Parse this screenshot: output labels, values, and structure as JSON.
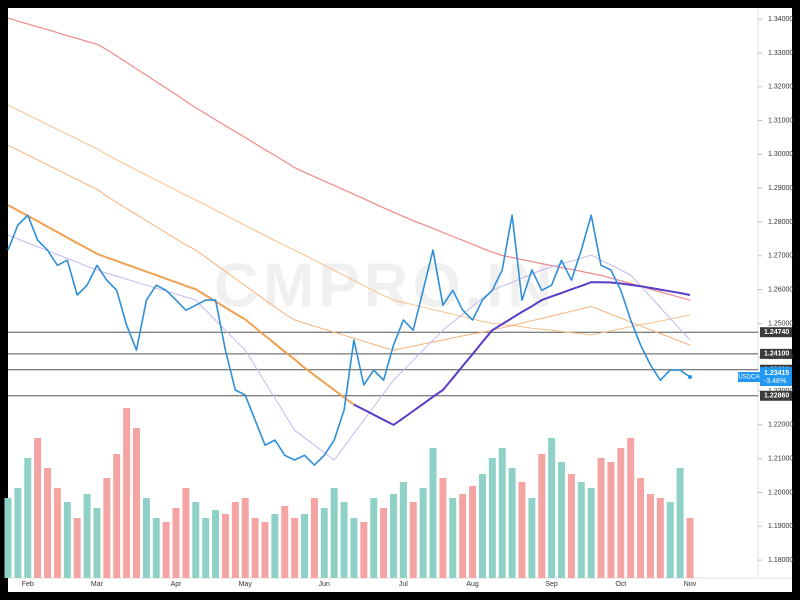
{
  "chart_data": {
    "type": "line",
    "watermark": "CMPRO.IN",
    "categories": [
      null,
      null,
      "Feb",
      null,
      null,
      null,
      null,
      null,
      null,
      "Mar",
      null,
      null,
      null,
      null,
      null,
      null,
      null,
      "Apr",
      null,
      null,
      null,
      null,
      null,
      null,
      "May",
      null,
      null,
      null,
      null,
      null,
      null,
      null,
      "Jun",
      null,
      null,
      null,
      null,
      null,
      null,
      null,
      "Jul",
      null,
      null,
      null,
      null,
      null,
      null,
      "Aug",
      null,
      null,
      null,
      null,
      null,
      null,
      null,
      "Sep",
      null,
      null,
      null,
      null,
      null,
      null,
      "Oct",
      null,
      null,
      null,
      null,
      null,
      null,
      "Nov"
    ],
    "ylim": [
      1.1747,
      1.3433
    ],
    "yticks": [
      {
        "value": 1.18,
        "label": "1.18000"
      },
      {
        "value": 1.19,
        "label": "1.19000"
      },
      {
        "value": 1.2,
        "label": "1.20000"
      },
      {
        "value": 1.21,
        "label": "1.21000"
      },
      {
        "value": 1.22,
        "label": "1.22000"
      },
      {
        "value": 1.23,
        "label": "1.23000"
      },
      {
        "value": 1.24,
        "label": "1.24000"
      },
      {
        "value": 1.25,
        "label": "1.25000"
      },
      {
        "value": 1.26,
        "label": "1.26000"
      },
      {
        "value": 1.27,
        "label": "1.27000"
      },
      {
        "value": 1.28,
        "label": "1.28000"
      },
      {
        "value": 1.29,
        "label": "1.29000"
      },
      {
        "value": 1.3,
        "label": "1.30000"
      },
      {
        "value": 1.31,
        "label": "1.31000"
      },
      {
        "value": 1.32,
        "label": "1.32000"
      },
      {
        "value": 1.33,
        "label": "1.33000"
      },
      {
        "value": 1.34,
        "label": "1.34000"
      }
    ],
    "grid": false,
    "levels": [
      {
        "value": 1.2474,
        "label": "1.24740"
      },
      {
        "value": 1.241,
        "label": "1.24100"
      },
      {
        "value": 1.2363,
        "label": "1.23630"
      },
      {
        "value": 1.2286,
        "label": "1.22860"
      }
    ],
    "last_price": {
      "symbol": "USDCAD",
      "value": 1.23415,
      "label": "1.23415",
      "change": "-3.46%",
      "color": "#2196f3"
    },
    "volume": {
      "ylim": [
        0,
        100
      ],
      "up_color": "#8fd1c6",
      "down_color": "#f4a5a3",
      "values": [
        40,
        45,
        60,
        70,
        55,
        45,
        38,
        30,
        42,
        35,
        50,
        62,
        85,
        75,
        40,
        30,
        28,
        35,
        45,
        38,
        30,
        34,
        32,
        38,
        40,
        30,
        28,
        32,
        36,
        30,
        32,
        40,
        35,
        45,
        38,
        30,
        28,
        40,
        35,
        42,
        48,
        38,
        45,
        65,
        50,
        40,
        42,
        46,
        52,
        60,
        65,
        55,
        48,
        40,
        62,
        70,
        58,
        52,
        48,
        45,
        60,
        58,
        65,
        70,
        50,
        42,
        40,
        38,
        55,
        30
      ]
    },
    "series": [
      {
        "color": "#f08a8a",
        "width": 1.2,
        "values": [
          1.3403,
          1.3394,
          1.3386,
          1.3377,
          1.3369,
          1.336,
          1.3351,
          1.3343,
          1.3334,
          1.3326,
          1.331,
          1.3291,
          1.3272,
          1.3253,
          1.3234,
          1.3215,
          1.3196,
          1.3177,
          1.3157,
          1.3138,
          1.312,
          1.3102,
          1.3085,
          1.3067,
          1.305,
          1.3032,
          1.3014,
          1.2997,
          1.2979,
          1.2961,
          1.2947,
          1.2934,
          1.2921,
          1.2908,
          1.2895,
          1.2882,
          1.2869,
          1.2855,
          1.2842,
          1.2829,
          1.2816,
          1.2804,
          1.2793,
          1.2781,
          1.2769,
          1.2757,
          1.2746,
          1.2734,
          1.2722,
          1.2711,
          1.2701,
          1.2695,
          1.2689,
          1.2683,
          1.2677,
          1.2671,
          1.2665,
          1.266,
          1.2654,
          1.2648,
          1.2642,
          1.2634,
          1.2626,
          1.2618,
          1.261,
          1.2601,
          1.2593,
          1.2585,
          1.2577,
          1.2569
        ]
      },
      {
        "color": "#f9c08a",
        "width": 1,
        "values": [
          1.3146,
          1.3132,
          1.3117,
          1.3103,
          1.3088,
          1.3074,
          1.306,
          1.3045,
          1.3031,
          1.3016,
          1.2999,
          1.2984,
          1.2969,
          1.2954,
          1.2939,
          1.2924,
          1.2909,
          1.2894,
          1.2879,
          1.2865,
          1.285,
          1.2835,
          1.282,
          1.2805,
          1.279,
          1.2775,
          1.276,
          1.2745,
          1.273,
          1.2717,
          1.2702,
          1.2687,
          1.2672,
          1.2657,
          1.2642,
          1.2627,
          1.2612,
          1.2597,
          1.2583,
          1.2569,
          1.2562,
          1.2555,
          1.2548,
          1.2541,
          1.2534,
          1.2527,
          1.252,
          1.2513,
          1.2506,
          1.25,
          1.2497,
          1.2493,
          1.249,
          1.2486,
          1.2483,
          1.248,
          1.2476,
          1.2473,
          1.247,
          1.2466,
          1.2472,
          1.2478,
          1.2484,
          1.249,
          1.2496,
          1.2501,
          1.2507,
          1.2513,
          1.2519,
          1.2525
        ]
      },
      {
        "color": "#f7b27a",
        "width": 1,
        "values": [
          1.3027,
          1.3013,
          1.2998,
          1.2984,
          1.2969,
          1.2955,
          1.294,
          1.2926,
          1.2911,
          1.2897,
          1.2876,
          1.2858,
          1.284,
          1.2822,
          1.2804,
          1.2786,
          1.2768,
          1.275,
          1.2732,
          1.2717,
          1.2696,
          1.2675,
          1.2654,
          1.2633,
          1.2612,
          1.2591,
          1.257,
          1.2549,
          1.2528,
          1.251,
          1.2501,
          1.2492,
          1.2483,
          1.2474,
          1.2465,
          1.2456,
          1.2447,
          1.2438,
          1.2429,
          1.2421,
          1.2427,
          1.2433,
          1.2439,
          1.2445,
          1.2451,
          1.2457,
          1.2463,
          1.2469,
          1.2474,
          1.248,
          1.2487,
          1.2494,
          1.2501,
          1.2508,
          1.2515,
          1.2522,
          1.2529,
          1.2536,
          1.2543,
          1.255,
          1.2539,
          1.2527,
          1.2516,
          1.2504,
          1.2493,
          1.2481,
          1.247,
          1.2459,
          1.2447,
          1.2436
        ]
      },
      {
        "color": "#c5b8f0",
        "width": 1,
        "values": [
          1.2761,
          1.275,
          1.2738,
          1.2727,
          1.2715,
          1.2704,
          1.2692,
          1.2681,
          1.2669,
          1.2658,
          1.2649,
          1.264,
          1.2631,
          1.2622,
          1.2613,
          1.2604,
          1.2596,
          1.2587,
          1.2578,
          1.2569,
          1.2539,
          1.2509,
          1.248,
          1.245,
          1.2421,
          1.2374,
          1.2326,
          1.2279,
          1.2231,
          1.2184,
          1.2162,
          1.214,
          1.2118,
          1.2096,
          1.2135,
          1.2175,
          1.2214,
          1.2253,
          1.2293,
          1.2332,
          1.2362,
          1.2391,
          1.2421,
          1.245,
          1.248,
          1.2504,
          1.2527,
          1.2551,
          1.2574,
          1.2598,
          1.261,
          1.2622,
          1.2634,
          1.2646,
          1.2658,
          1.2667,
          1.2676,
          1.2684,
          1.2693,
          1.2702,
          1.2687,
          1.2673,
          1.2658,
          1.2643,
          1.2611,
          1.2579,
          1.2547,
          1.2515,
          1.2483,
          1.2451
        ]
      },
      {
        "color": "#f0a050",
        "width": 2,
        "values": [
          1.285,
          1.2834,
          1.2818,
          1.2802,
          1.2786,
          1.277,
          1.2754,
          1.2738,
          1.2722,
          1.2706,
          1.2695,
          1.2685,
          1.2674,
          1.2664,
          1.2653,
          1.2643,
          1.2632,
          1.2622,
          1.2611,
          1.2601,
          1.2583,
          1.2565,
          1.2547,
          1.2529,
          1.2512,
          1.2488,
          1.2464,
          1.244,
          1.2416,
          1.2394,
          1.2369,
          1.2347,
          1.2325,
          1.2303,
          1.2281,
          1.226,
          null,
          null,
          null,
          null,
          null,
          null,
          null,
          null,
          null,
          null,
          null,
          null,
          null,
          null,
          null,
          null,
          null,
          null,
          null,
          null,
          null,
          null,
          null,
          null,
          null,
          null,
          null,
          null,
          null,
          null,
          null,
          null,
          null,
          null
        ]
      },
      {
        "color": "#5b3cc4",
        "width": 2,
        "values": [
          null,
          null,
          null,
          null,
          null,
          null,
          null,
          null,
          null,
          null,
          null,
          null,
          null,
          null,
          null,
          null,
          null,
          null,
          null,
          null,
          null,
          null,
          null,
          null,
          null,
          null,
          null,
          null,
          null,
          null,
          null,
          null,
          null,
          null,
          null,
          1.226,
          1.2245,
          1.223,
          1.2215,
          1.22,
          1.222,
          1.2241,
          1.2262,
          1.2283,
          1.2303,
          1.2338,
          1.2374,
          1.2409,
          1.2445,
          1.248,
          1.2498,
          1.2516,
          1.2534,
          1.2551,
          1.2569,
          1.258,
          1.259,
          1.2601,
          1.2611,
          1.2622,
          1.2622,
          1.2621,
          1.2618,
          1.2614,
          1.261,
          1.2605,
          1.26,
          1.2595,
          1.259,
          1.2584
        ]
      },
      {
        "color": "#2e8fd8",
        "width": 1.6,
        "values": [
          1.2717,
          1.2791,
          1.282,
          1.2746,
          1.2717,
          1.2672,
          1.2687,
          1.2584,
          1.2613,
          1.2672,
          1.2628,
          1.2598,
          1.2495,
          1.2421,
          1.2569,
          1.2613,
          1.2598,
          1.2569,
          1.2539,
          1.2554,
          1.2569,
          1.2569,
          1.2421,
          1.2303,
          1.2288,
          1.2214,
          1.214,
          1.2155,
          1.211,
          1.2096,
          1.211,
          1.2081,
          1.211,
          1.2155,
          1.2244,
          1.2451,
          1.2318,
          1.2362,
          1.2332,
          1.2436,
          1.251,
          1.248,
          1.2598,
          1.2717,
          1.2554,
          1.2598,
          1.2539,
          1.251,
          1.2569,
          1.2598,
          1.2658,
          1.282,
          1.2569,
          1.2658,
          1.2598,
          1.2613,
          1.2687,
          1.2628,
          1.2717,
          1.282,
          1.2672,
          1.2658,
          1.2598,
          1.251,
          1.2436,
          1.2377,
          1.2332,
          1.2362,
          1.2362,
          1.23415
        ]
      }
    ]
  }
}
